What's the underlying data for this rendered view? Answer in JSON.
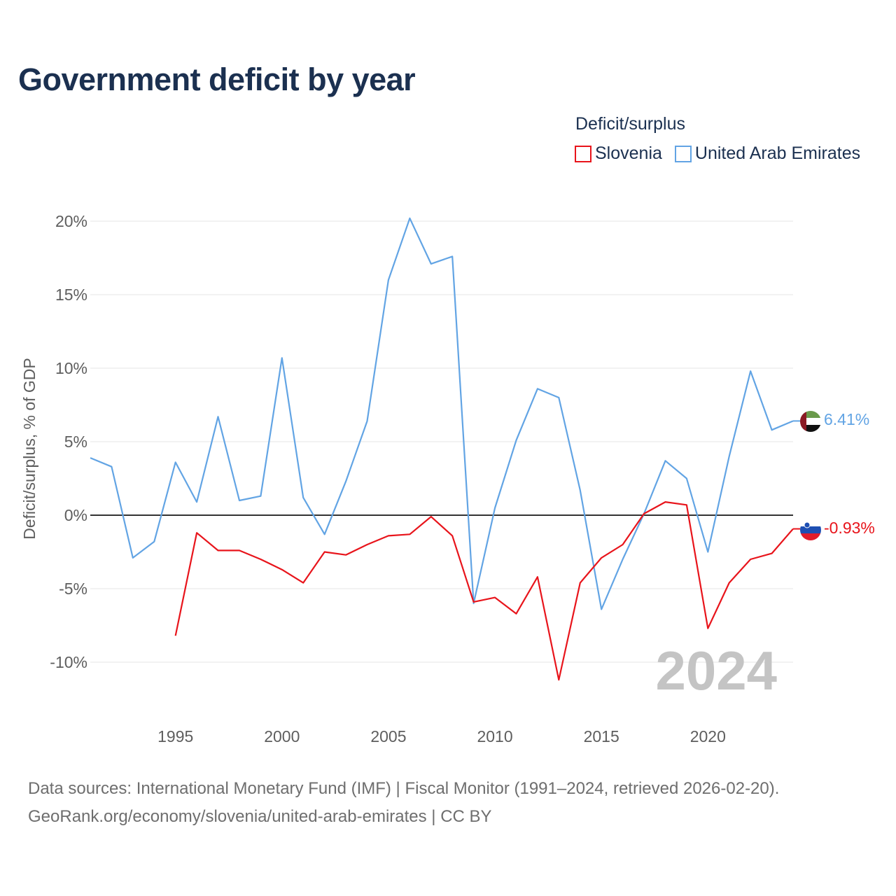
{
  "title": "Government deficit by year",
  "legend": {
    "title": "Deficit/surplus",
    "items": [
      {
        "name": "Slovenia",
        "color": "#e8141b"
      },
      {
        "name": "United Arab Emirates",
        "color": "#62a4e4"
      }
    ]
  },
  "footer": {
    "line1": "Data sources: International Monetary Fund (IMF) | Fiscal Monitor (1991–2024, retrieved 2026-02-20).",
    "line2": "GeoRank.org/economy/slovenia/united-arab-emirates | CC BY"
  },
  "chart_data": {
    "type": "line",
    "title": "Government deficit by year",
    "ylabel": "Deficit/surplus, % of GDP",
    "xlabel": "",
    "xlim": [
      1991,
      2024
    ],
    "ylim": [
      -13,
      21
    ],
    "yticks": [
      20,
      15,
      10,
      5,
      0,
      -5,
      -10
    ],
    "ytick_labels": [
      "20%",
      "15%",
      "10%",
      "5%",
      "0%",
      "-5%",
      "-10%"
    ],
    "xticks": [
      1995,
      2000,
      2005,
      2010,
      2015,
      2020
    ],
    "xtick_labels": [
      "1995",
      "2000",
      "2005",
      "2010",
      "2015",
      "2020"
    ],
    "year_watermark": "2024",
    "series": [
      {
        "name": "United Arab Emirates",
        "color": "#62a4e4",
        "end_label": "6.41%",
        "x": [
          1991,
          1992,
          1993,
          1994,
          1995,
          1996,
          1997,
          1998,
          1999,
          2000,
          2001,
          2002,
          2003,
          2004,
          2005,
          2006,
          2007,
          2008,
          2009,
          2010,
          2011,
          2012,
          2013,
          2014,
          2015,
          2016,
          2017,
          2018,
          2019,
          2020,
          2021,
          2022,
          2023,
          2024
        ],
        "values": [
          3.9,
          3.3,
          -2.9,
          -1.8,
          3.6,
          0.9,
          6.7,
          1.0,
          1.3,
          10.7,
          1.2,
          -1.3,
          2.3,
          6.4,
          16.0,
          20.2,
          17.1,
          17.6,
          -6.0,
          0.5,
          5.1,
          8.6,
          8.0,
          1.7,
          -6.4,
          -3.0,
          0.1,
          3.7,
          2.5,
          -2.5,
          4.0,
          9.8,
          5.8,
          6.41
        ]
      },
      {
        "name": "Slovenia",
        "color": "#e8141b",
        "end_label": "-0.93%",
        "x": [
          1995,
          1996,
          1997,
          1998,
          1999,
          2000,
          2001,
          2002,
          2003,
          2004,
          2005,
          2006,
          2007,
          2008,
          2009,
          2010,
          2011,
          2012,
          2013,
          2014,
          2015,
          2016,
          2017,
          2018,
          2019,
          2020,
          2021,
          2022,
          2023,
          2024
        ],
        "values": [
          -8.2,
          -1.2,
          -2.4,
          -2.4,
          -3.0,
          -3.7,
          -4.6,
          -2.5,
          -2.7,
          -2.0,
          -1.4,
          -1.3,
          -0.1,
          -1.4,
          -5.9,
          -5.6,
          -6.7,
          -4.2,
          -11.2,
          -4.6,
          -2.9,
          -2.0,
          0.1,
          0.9,
          0.7,
          -7.7,
          -4.6,
          -3.0,
          -2.6,
          -0.93
        ]
      }
    ]
  }
}
